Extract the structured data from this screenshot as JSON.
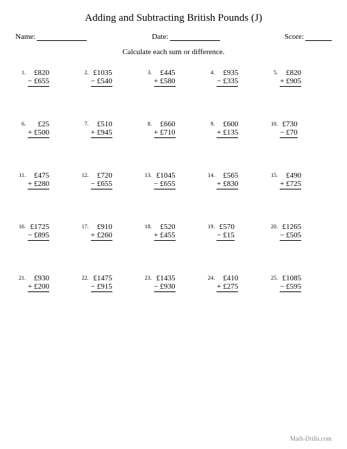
{
  "title": "Adding and Subtracting British Pounds (J)",
  "meta": {
    "name_label": "Name:",
    "date_label": "Date:",
    "score_label": "Score:"
  },
  "instruction": "Calculate each sum or difference.",
  "blank_widths": {
    "name": 72,
    "date": 72,
    "score": 38
  },
  "problems": [
    {
      "n": "1.",
      "top": "£820",
      "op": "−",
      "bot": "£655"
    },
    {
      "n": "2.",
      "top": "£1035",
      "op": "−",
      "bot": "£540"
    },
    {
      "n": "3.",
      "top": "£445",
      "op": "+",
      "bot": "£580"
    },
    {
      "n": "4.",
      "top": "£935",
      "op": "−",
      "bot": "£335"
    },
    {
      "n": "5.",
      "top": "£820",
      "op": "+",
      "bot": "£905"
    },
    {
      "n": "6.",
      "top": "£25",
      "op": "+",
      "bot": "£500"
    },
    {
      "n": "7.",
      "top": "£510",
      "op": "+",
      "bot": "£945"
    },
    {
      "n": "8.",
      "top": "£660",
      "op": "+",
      "bot": "£710"
    },
    {
      "n": "9.",
      "top": "£600",
      "op": "+",
      "bot": "£135"
    },
    {
      "n": "10.",
      "top": "£730",
      "op": "−",
      "bot": "£70"
    },
    {
      "n": "11.",
      "top": "£475",
      "op": "+",
      "bot": "£280"
    },
    {
      "n": "12.",
      "top": "£720",
      "op": "−",
      "bot": "£655"
    },
    {
      "n": "13.",
      "top": "£1045",
      "op": "−",
      "bot": "£655"
    },
    {
      "n": "14.",
      "top": "£565",
      "op": "+",
      "bot": "£830"
    },
    {
      "n": "15.",
      "top": "£490",
      "op": "+",
      "bot": "£725"
    },
    {
      "n": "16.",
      "top": "£1725",
      "op": "−",
      "bot": "£895"
    },
    {
      "n": "17.",
      "top": "£910",
      "op": "+",
      "bot": "£260"
    },
    {
      "n": "18.",
      "top": "£520",
      "op": "+",
      "bot": "£455"
    },
    {
      "n": "19.",
      "top": "£570",
      "op": "−",
      "bot": "£15"
    },
    {
      "n": "20.",
      "top": "£1265",
      "op": "−",
      "bot": "£505"
    },
    {
      "n": "21.",
      "top": "£930",
      "op": "+",
      "bot": "£200"
    },
    {
      "n": "22.",
      "top": "£1475",
      "op": "−",
      "bot": "£915"
    },
    {
      "n": "23.",
      "top": "£1435",
      "op": "−",
      "bot": "£930"
    },
    {
      "n": "24.",
      "top": "£410",
      "op": "+",
      "bot": "£275"
    },
    {
      "n": "25.",
      "top": "£1085",
      "op": "−",
      "bot": "£595"
    }
  ],
  "footer": "Math-Drills.com"
}
